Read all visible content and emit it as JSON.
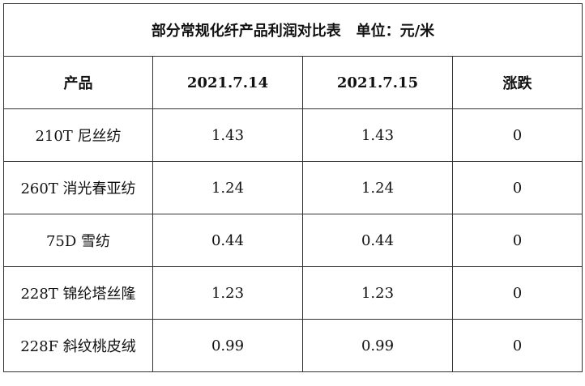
{
  "table": {
    "title": "部分常规化纤产品利润对比表   单位：元/米",
    "header": [
      "产品",
      "2021.7.14",
      "2021.7.15",
      "涨跌"
    ],
    "rows": [
      [
        "210T 尼丝纺",
        "1.43",
        "1.43",
        "0"
      ],
      [
        "260T 消光春亚纺",
        "1.24",
        "1.24",
        "0"
      ],
      [
        "75D 雪纺",
        "0.44",
        "0.44",
        "0"
      ],
      [
        "228T 锦纶塔丝隆",
        "1.23",
        "1.23",
        "0"
      ],
      [
        "228F 斜纹桃皮绒",
        "0.99",
        "0.99",
        "0"
      ]
    ]
  }
}
